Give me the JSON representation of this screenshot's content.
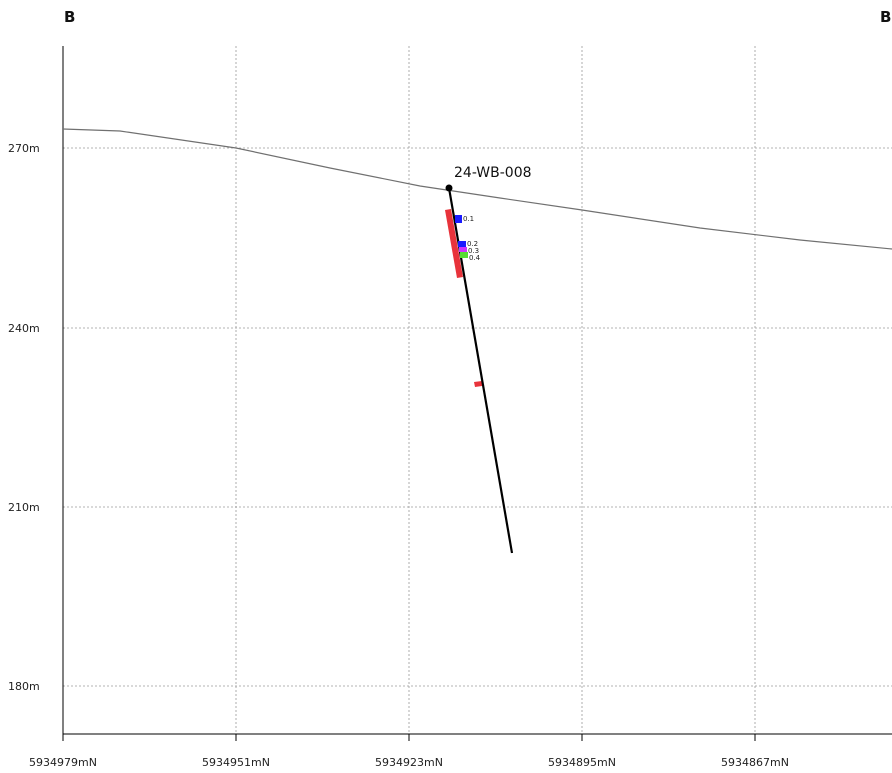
{
  "section": {
    "left_label": "B",
    "right_label": "B"
  },
  "elevation_ticks": [
    "270m",
    "240m",
    "210m",
    "180m"
  ],
  "northing_ticks": [
    "5934979mN",
    "5934951mN",
    "5934923mN",
    "5934895mN",
    "5934867mN"
  ],
  "drillhole": {
    "name": "24-WB-008"
  },
  "samples": [
    "0.1",
    "0.2",
    "0.3",
    "0.4"
  ],
  "colors": {
    "red_interval": "#e8333b",
    "sample_blue": "#1a1aff",
    "sample_magenta": "#cc33ff",
    "sample_green": "#55dd33",
    "trace": "#000000",
    "topography": "#707070"
  }
}
